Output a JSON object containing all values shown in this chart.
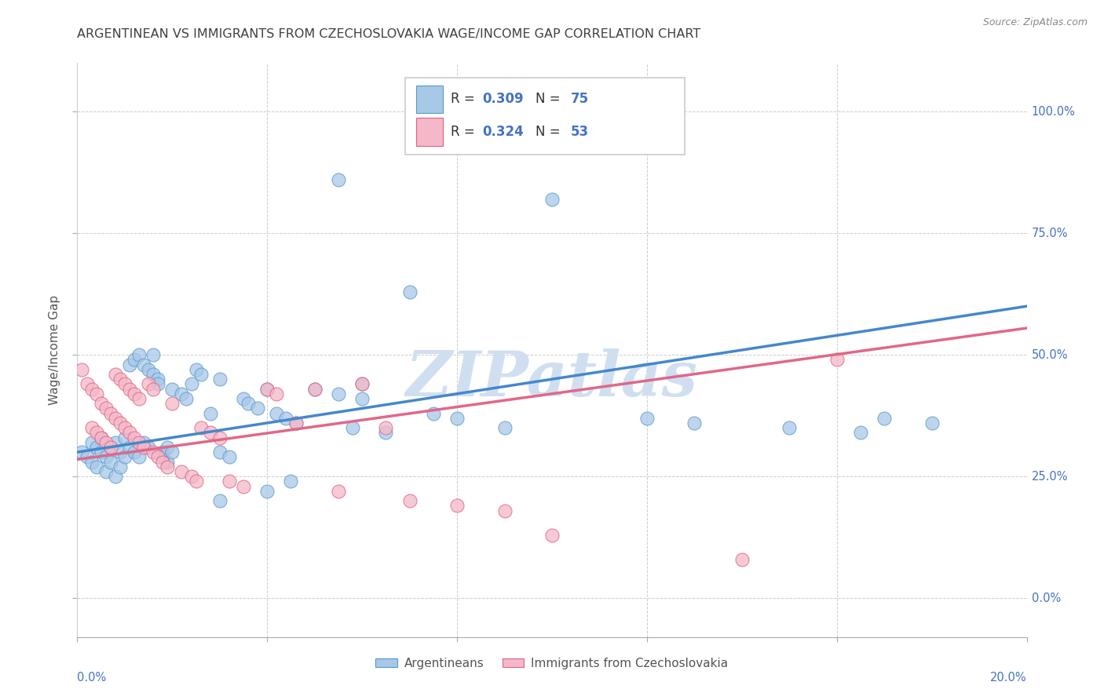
{
  "title": "ARGENTINEAN VS IMMIGRANTS FROM CZECHOSLOVAKIA WAGE/INCOME GAP CORRELATION CHART",
  "source": "Source: ZipAtlas.com",
  "ylabel": "Wage/Income Gap",
  "legend_bottom": [
    "Argentineans",
    "Immigrants from Czechoslovakia"
  ],
  "blue_color": "#a8c8e8",
  "pink_color": "#f4b8c8",
  "blue_edge_color": "#5599cc",
  "pink_edge_color": "#e06080",
  "blue_line_color": "#4488cc",
  "pink_line_color": "#e06888",
  "axis_label_color": "#4472c4",
  "watermark_color": "#d0dff0",
  "grid_color": "#cccccc",
  "title_color": "#404040",
  "source_color": "#888888",
  "background_color": "#ffffff",
  "blue_R": "0.309",
  "blue_N": "75",
  "pink_R": "0.324",
  "pink_N": "53",
  "watermark": "ZIPatlas",
  "blue_line_x0": 0.0,
  "blue_line_y0": 0.3,
  "blue_line_x1": 0.2,
  "blue_line_y1": 0.6,
  "pink_line_x0": 0.0,
  "pink_line_y0": 0.285,
  "pink_line_x1": 0.2,
  "pink_line_y1": 0.555,
  "xlim": [
    0.0,
    0.2
  ],
  "ylim": [
    -0.08,
    1.1
  ],
  "ytick_positions": [
    0.0,
    0.25,
    0.5,
    0.75,
    1.0
  ],
  "ytick_labels": [
    "0.0%",
    "25.0%",
    "50.0%",
    "75.0%",
    "100.0%"
  ],
  "xtick_positions": [
    0.0,
    0.04,
    0.08,
    0.12,
    0.16,
    0.2
  ],
  "blue_x": [
    0.001,
    0.002,
    0.003,
    0.003,
    0.004,
    0.004,
    0.005,
    0.005,
    0.006,
    0.006,
    0.007,
    0.007,
    0.008,
    0.008,
    0.009,
    0.009,
    0.01,
    0.01,
    0.011,
    0.011,
    0.012,
    0.012,
    0.013,
    0.013,
    0.014,
    0.014,
    0.015,
    0.015,
    0.016,
    0.016,
    0.017,
    0.017,
    0.018,
    0.018,
    0.019,
    0.019,
    0.02,
    0.02,
    0.022,
    0.023,
    0.024,
    0.025,
    0.026,
    0.028,
    0.03,
    0.03,
    0.032,
    0.035,
    0.036,
    0.038,
    0.04,
    0.042,
    0.044,
    0.046,
    0.05,
    0.055,
    0.058,
    0.06,
    0.065,
    0.07,
    0.075,
    0.08,
    0.09,
    0.1,
    0.12,
    0.13,
    0.15,
    0.165,
    0.17,
    0.18,
    0.04,
    0.06,
    0.03,
    0.045,
    0.055
  ],
  "blue_y": [
    0.3,
    0.29,
    0.32,
    0.28,
    0.31,
    0.27,
    0.3,
    0.33,
    0.29,
    0.26,
    0.31,
    0.28,
    0.32,
    0.25,
    0.3,
    0.27,
    0.29,
    0.33,
    0.48,
    0.31,
    0.49,
    0.3,
    0.5,
    0.29,
    0.48,
    0.32,
    0.47,
    0.31,
    0.46,
    0.5,
    0.45,
    0.44,
    0.3,
    0.29,
    0.28,
    0.31,
    0.3,
    0.43,
    0.42,
    0.41,
    0.44,
    0.47,
    0.46,
    0.38,
    0.45,
    0.3,
    0.29,
    0.41,
    0.4,
    0.39,
    0.43,
    0.38,
    0.37,
    0.36,
    0.43,
    0.42,
    0.35,
    0.41,
    0.34,
    0.63,
    0.38,
    0.37,
    0.35,
    0.82,
    0.37,
    0.36,
    0.35,
    0.34,
    0.37,
    0.36,
    0.22,
    0.44,
    0.2,
    0.24,
    0.86
  ],
  "pink_x": [
    0.001,
    0.002,
    0.003,
    0.003,
    0.004,
    0.004,
    0.005,
    0.005,
    0.006,
    0.006,
    0.007,
    0.007,
    0.008,
    0.008,
    0.009,
    0.009,
    0.01,
    0.01,
    0.011,
    0.011,
    0.012,
    0.012,
    0.013,
    0.013,
    0.014,
    0.015,
    0.016,
    0.016,
    0.017,
    0.018,
    0.019,
    0.02,
    0.022,
    0.024,
    0.025,
    0.026,
    0.028,
    0.03,
    0.032,
    0.035,
    0.04,
    0.042,
    0.046,
    0.05,
    0.055,
    0.06,
    0.065,
    0.07,
    0.08,
    0.09,
    0.1,
    0.14,
    0.16
  ],
  "pink_y": [
    0.47,
    0.44,
    0.43,
    0.35,
    0.42,
    0.34,
    0.4,
    0.33,
    0.39,
    0.32,
    0.38,
    0.31,
    0.37,
    0.46,
    0.36,
    0.45,
    0.35,
    0.44,
    0.34,
    0.43,
    0.33,
    0.42,
    0.32,
    0.41,
    0.31,
    0.44,
    0.43,
    0.3,
    0.29,
    0.28,
    0.27,
    0.4,
    0.26,
    0.25,
    0.24,
    0.35,
    0.34,
    0.33,
    0.24,
    0.23,
    0.43,
    0.42,
    0.36,
    0.43,
    0.22,
    0.44,
    0.35,
    0.2,
    0.19,
    0.18,
    0.13,
    0.08,
    0.49
  ]
}
